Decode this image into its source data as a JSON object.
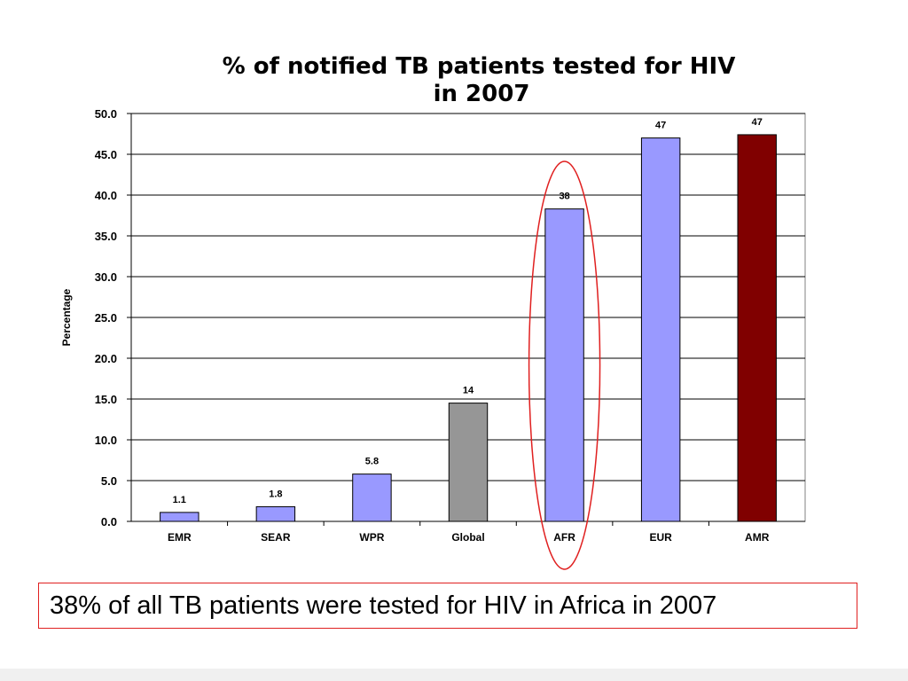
{
  "chart_data": {
    "type": "bar",
    "title_line1": "% of notified TB patients tested for HIV",
    "title_line2": "in 2007",
    "ylabel": "Percentage",
    "xlabel": "",
    "ylim": [
      0,
      50
    ],
    "y_ticks": [
      "0.0",
      "5.0",
      "10.0",
      "15.0",
      "20.0",
      "25.0",
      "30.0",
      "35.0",
      "40.0",
      "45.0",
      "50.0"
    ],
    "grid": true,
    "categories": [
      "EMR",
      "SEAR",
      "WPR",
      "Global",
      "AFR",
      "EUR",
      "AMR"
    ],
    "values": [
      1.1,
      1.8,
      5.8,
      14.5,
      38.3,
      47.0,
      47.4
    ],
    "data_labels": [
      "1.1",
      "1.8",
      "5.8",
      "14",
      "38",
      "47",
      "47"
    ],
    "bar_colors": [
      "#9999ff",
      "#9999ff",
      "#9999ff",
      "#969696",
      "#9999ff",
      "#9999ff",
      "#800000"
    ],
    "highlight": {
      "category": "AFR",
      "shape": "ellipse",
      "color": "#e02020"
    }
  },
  "caption": "38% of all TB patients were tested for HIV in Africa in 2007"
}
